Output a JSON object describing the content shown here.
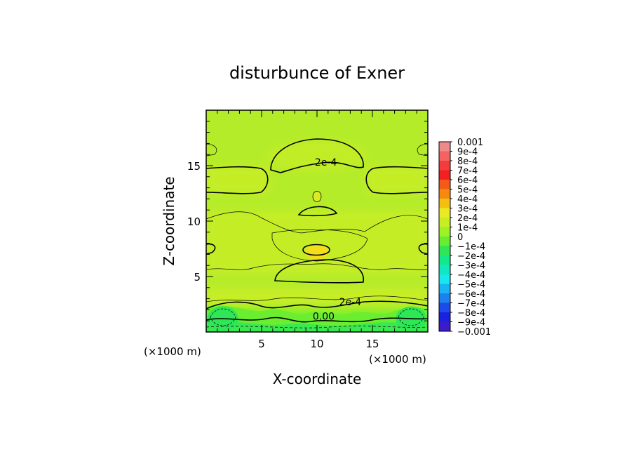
{
  "chart_data": {
    "type": "contour",
    "title": "disturbunce of Exner",
    "xlabel": "X-coordinate",
    "ylabel": "Z-coordinate",
    "x_unit": "(×1000 m)",
    "y_unit": "(×1000 m)",
    "xlim": [
      0,
      20
    ],
    "ylim": [
      0,
      20
    ],
    "x_ticks": [
      5,
      10,
      15
    ],
    "y_ticks": [
      5,
      10,
      15
    ],
    "colorbar": {
      "min": -0.001,
      "max": 0.001,
      "levels": [
        {
          "label": "0.001",
          "value": 0.001,
          "color": "#f08a8a"
        },
        {
          "label": "9e-4",
          "value": 0.0009,
          "color": "#f46262"
        },
        {
          "label": "8e-4",
          "value": 0.0008,
          "color": "#f43c3c"
        },
        {
          "label": "7e-4",
          "value": 0.0007,
          "color": "#f22020"
        },
        {
          "label": "6e-4",
          "value": 0.0006,
          "color": "#f45a18"
        },
        {
          "label": "5e-4",
          "value": 0.0005,
          "color": "#f68a10"
        },
        {
          "label": "4e-4",
          "value": 0.0004,
          "color": "#f4c010"
        },
        {
          "label": "3e-4",
          "value": 0.0003,
          "color": "#eaea22"
        },
        {
          "label": "2e-4",
          "value": 0.0002,
          "color": "#c6ee22"
        },
        {
          "label": "1e-4",
          "value": 0.0001,
          "color": "#9cf224"
        },
        {
          "label": "0",
          "value": 0,
          "color": "#66ee30"
        },
        {
          "label": "−1e-4",
          "value": -0.0001,
          "color": "#2ee656"
        },
        {
          "label": "−2e-4",
          "value": -0.0002,
          "color": "#14e88a"
        },
        {
          "label": "−3e-4",
          "value": -0.0003,
          "color": "#12e8c0"
        },
        {
          "label": "−4e-4",
          "value": -0.0004,
          "color": "#16e8ee"
        },
        {
          "label": "−5e-4",
          "value": -0.0005,
          "color": "#1ab4f2"
        },
        {
          "label": "−6e-4",
          "value": -0.0006,
          "color": "#1c80ee"
        },
        {
          "label": "−7e-4",
          "value": -0.0007,
          "color": "#1c4ce8"
        },
        {
          "label": "−8e-4",
          "value": -0.0008,
          "color": "#1a22e0"
        },
        {
          "label": "−9e-4",
          "value": -0.0009,
          "color": "#3a1ccc"
        },
        {
          "label": "−0.001",
          "value": -0.001,
          "color": "#6a1cb0"
        }
      ]
    },
    "background_color": "#b6ec2a",
    "regions": [
      {
        "x": 10,
        "z": 7.2,
        "rx": 1.0,
        "rz": 0.7,
        "value": 0.0004,
        "color": "#f2de1a"
      },
      {
        "x": 10,
        "z": 12.2,
        "rx": 0.3,
        "rz": 0.5,
        "value": 0.0003,
        "color": "#dcea26"
      },
      {
        "x": 1.5,
        "z": 1.2,
        "rx": 1.4,
        "rz": 1.1,
        "value": -0.0001,
        "color": "#2ee656"
      },
      {
        "x": 18.5,
        "z": 1.2,
        "rx": 1.4,
        "rz": 1.1,
        "value": -0.0001,
        "color": "#2ee656"
      }
    ],
    "contour_labels": [
      {
        "text": "2e-4",
        "x": 10.8,
        "z": 15.0
      },
      {
        "text": "2e-4",
        "x": 13.0,
        "z": 2.4
      },
      {
        "text": "0.00",
        "x": 10.6,
        "z": 1.1
      }
    ]
  }
}
